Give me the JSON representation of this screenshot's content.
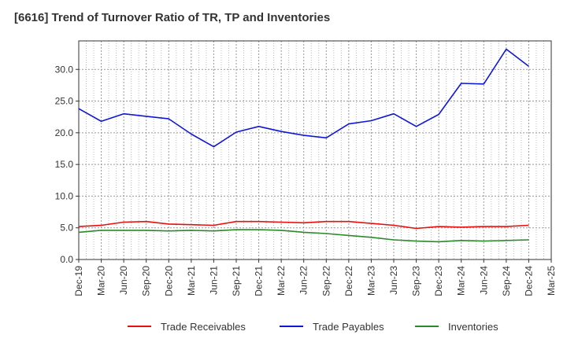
{
  "chart_data": {
    "type": "line",
    "title": "[6616]  Trend of Turnover Ratio of TR, TP and Inventories",
    "xlabel": "",
    "ylabel": "",
    "ylim": [
      0,
      34.5
    ],
    "yticks": [
      "0.0",
      "5.0",
      "10.0",
      "15.0",
      "20.0",
      "25.0",
      "30.0"
    ],
    "ytick_values": [
      0,
      5,
      10,
      15,
      20,
      25,
      30
    ],
    "x_tick_labels": [
      "Dec-19",
      "Mar-20",
      "Jun-20",
      "Sep-20",
      "Dec-20",
      "Mar-21",
      "Jun-21",
      "Sep-21",
      "Dec-21",
      "Mar-22",
      "Jun-22",
      "Sep-22",
      "Dec-22",
      "Mar-23",
      "Jun-23",
      "Sep-23",
      "Dec-23",
      "Mar-24",
      "Jun-24",
      "Sep-24",
      "Dec-24",
      "Mar-25"
    ],
    "x": [
      "Dec-19",
      "Mar-20",
      "Jun-20",
      "Sep-20",
      "Dec-20",
      "Mar-21",
      "Jun-21",
      "Sep-21",
      "Dec-21",
      "Mar-22",
      "Jun-22",
      "Sep-22",
      "Dec-22",
      "Mar-23",
      "Jun-23",
      "Sep-23",
      "Dec-23",
      "Mar-24",
      "Jun-24",
      "Sep-24",
      "Dec-24"
    ],
    "grid": true,
    "legend_position": "bottom",
    "series": [
      {
        "name": "Trade Receivables",
        "color": "#e8100f",
        "values": [
          5.2,
          5.4,
          5.9,
          6.0,
          5.6,
          5.5,
          5.4,
          6.0,
          6.0,
          5.9,
          5.8,
          6.0,
          6.0,
          5.7,
          5.4,
          4.9,
          5.2,
          5.1,
          5.2,
          5.2,
          5.4
        ]
      },
      {
        "name": "Trade Payables",
        "color": "#0f17d6",
        "values": [
          23.8,
          21.8,
          23.0,
          22.6,
          22.2,
          19.8,
          17.8,
          20.1,
          21.0,
          20.2,
          19.6,
          19.2,
          21.4,
          21.9,
          23.0,
          21.0,
          22.9,
          27.8,
          27.7,
          33.2,
          30.5
        ]
      },
      {
        "name": "Inventories",
        "color": "#2a8a2a",
        "values": [
          4.3,
          4.6,
          4.6,
          4.6,
          4.5,
          4.6,
          4.5,
          4.7,
          4.7,
          4.6,
          4.3,
          4.1,
          3.8,
          3.5,
          3.1,
          2.9,
          2.8,
          3.0,
          2.9,
          3.0,
          3.1
        ]
      }
    ]
  }
}
